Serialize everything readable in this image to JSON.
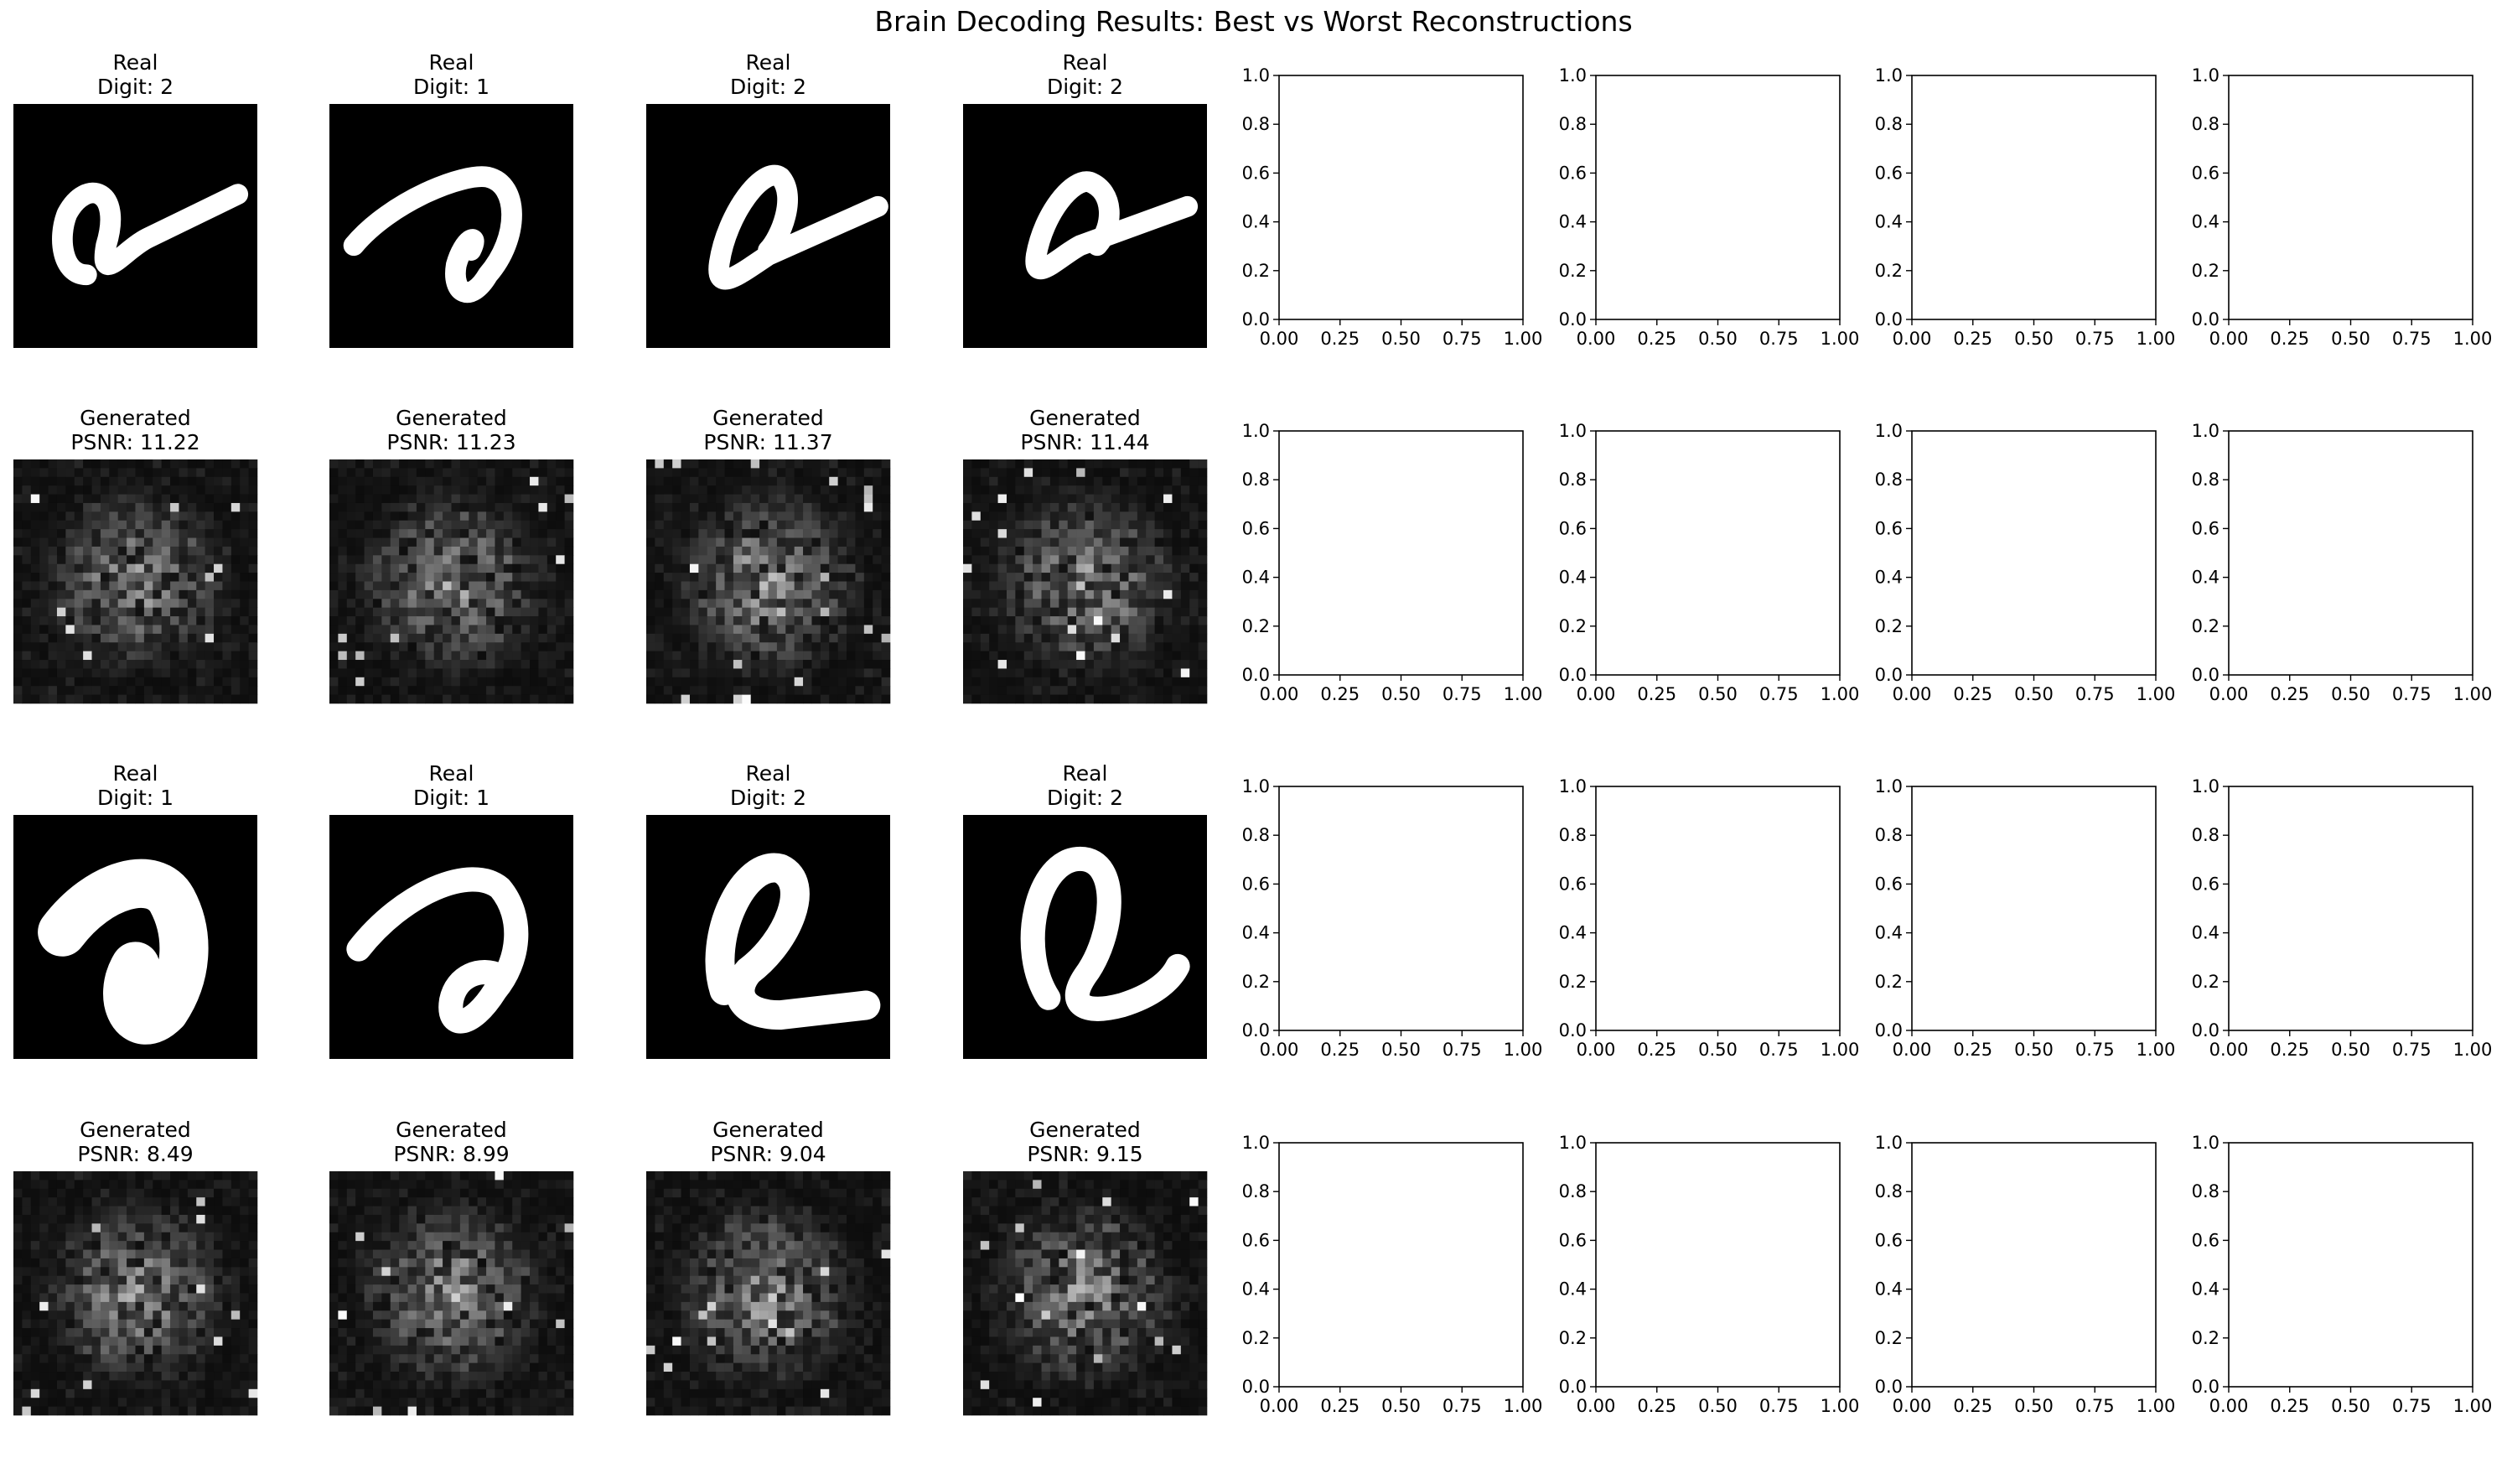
{
  "figure": {
    "suptitle": "Brain Decoding Results: Best vs Worst Reconstructions"
  },
  "chart_data": {
    "type": "image_grid",
    "title": "Brain Decoding Results: Best vs Worst Reconstructions",
    "grid": {
      "rows": 4,
      "cols": 8
    },
    "image_panels": [
      {
        "row": 0,
        "col": 0,
        "line1": "Real",
        "line2": "Digit: 2",
        "kind": "real",
        "digit": 2
      },
      {
        "row": 0,
        "col": 1,
        "line1": "Real",
        "line2": "Digit: 1",
        "kind": "real",
        "digit": 1
      },
      {
        "row": 0,
        "col": 2,
        "line1": "Real",
        "line2": "Digit: 2",
        "kind": "real",
        "digit": 2
      },
      {
        "row": 0,
        "col": 3,
        "line1": "Real",
        "line2": "Digit: 2",
        "kind": "real",
        "digit": 2
      },
      {
        "row": 1,
        "col": 0,
        "line1": "Generated",
        "line2": "PSNR: 11.22",
        "kind": "generated",
        "psnr": 11.22
      },
      {
        "row": 1,
        "col": 1,
        "line1": "Generated",
        "line2": "PSNR: 11.23",
        "kind": "generated",
        "psnr": 11.23
      },
      {
        "row": 1,
        "col": 2,
        "line1": "Generated",
        "line2": "PSNR: 11.37",
        "kind": "generated",
        "psnr": 11.37
      },
      {
        "row": 1,
        "col": 3,
        "line1": "Generated",
        "line2": "PSNR: 11.44",
        "kind": "generated",
        "psnr": 11.44
      },
      {
        "row": 2,
        "col": 0,
        "line1": "Real",
        "line2": "Digit: 1",
        "kind": "real",
        "digit": 1
      },
      {
        "row": 2,
        "col": 1,
        "line1": "Real",
        "line2": "Digit: 1",
        "kind": "real",
        "digit": 1
      },
      {
        "row": 2,
        "col": 2,
        "line1": "Real",
        "line2": "Digit: 2",
        "kind": "real",
        "digit": 2
      },
      {
        "row": 2,
        "col": 3,
        "line1": "Real",
        "line2": "Digit: 2",
        "kind": "real",
        "digit": 2
      },
      {
        "row": 3,
        "col": 0,
        "line1": "Generated",
        "line2": "PSNR: 8.49",
        "kind": "generated",
        "psnr": 8.49
      },
      {
        "row": 3,
        "col": 1,
        "line1": "Generated",
        "line2": "PSNR: 8.99",
        "kind": "generated",
        "psnr": 8.99
      },
      {
        "row": 3,
        "col": 2,
        "line1": "Generated",
        "line2": "PSNR: 9.04",
        "kind": "generated",
        "psnr": 9.04
      },
      {
        "row": 3,
        "col": 3,
        "line1": "Generated",
        "line2": "PSNR: 9.15",
        "kind": "generated",
        "psnr": 9.15
      }
    ],
    "empty_axes": {
      "cols": [
        4,
        5,
        6,
        7
      ],
      "rows": [
        0,
        1,
        2,
        3
      ],
      "xlim": [
        0,
        1
      ],
      "ylim": [
        0,
        1
      ],
      "x_ticks": [
        "0.00",
        "0.25",
        "0.50",
        "0.75",
        "1.00"
      ],
      "y_ticks": [
        "0.0",
        "0.2",
        "0.4",
        "0.6",
        "0.8",
        "1.0"
      ],
      "grid": false
    },
    "colors": {
      "image_bg": "#000000",
      "stroke": "#ffffff",
      "axis": "#000000"
    }
  }
}
